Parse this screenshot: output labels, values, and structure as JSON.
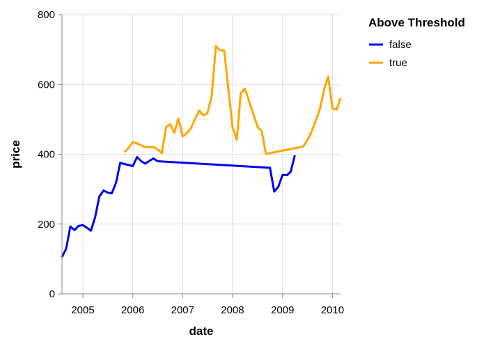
{
  "chart_data": {
    "type": "line",
    "xlabel": "date",
    "ylabel": "price",
    "x_ticks": [
      "2005",
      "2006",
      "2007",
      "2008",
      "2009",
      "2010"
    ],
    "y_ticks": [
      "0",
      "200",
      "400",
      "600",
      "800"
    ],
    "xlim": [
      "2004-08-01",
      "2010-03-01"
    ],
    "ylim": [
      0,
      800
    ],
    "grid": true,
    "legend": {
      "title": "Above Threshold",
      "placement": "top-right"
    },
    "series": [
      {
        "name": "false",
        "color": "#0000ee",
        "points": [
          [
            "2004-08-01",
            105
          ],
          [
            "2004-09-01",
            130
          ],
          [
            "2004-10-01",
            193
          ],
          [
            "2004-11-01",
            183
          ],
          [
            "2004-12-01",
            195
          ],
          [
            "2005-01-01",
            197
          ],
          [
            "2005-02-01",
            189
          ],
          [
            "2005-03-01",
            181
          ],
          [
            "2005-04-01",
            220
          ],
          [
            "2005-05-01",
            279
          ],
          [
            "2005-06-01",
            296
          ],
          [
            "2005-07-01",
            290
          ],
          [
            "2005-08-01",
            288
          ],
          [
            "2005-09-01",
            319
          ],
          [
            "2005-10-01",
            375
          ],
          [
            "2006-01-01",
            366
          ],
          [
            "2006-02-01",
            392
          ],
          [
            "2006-03-01",
            381
          ],
          [
            "2006-04-01",
            373
          ],
          [
            "2006-06-01",
            388
          ],
          [
            "2006-07-01",
            380
          ],
          [
            "2008-10-01",
            361
          ],
          [
            "2008-11-01",
            293
          ],
          [
            "2008-12-01",
            307
          ],
          [
            "2009-01-01",
            341
          ],
          [
            "2009-02-01",
            340
          ],
          [
            "2009-03-01",
            350
          ],
          [
            "2009-04-01",
            397
          ]
        ]
      },
      {
        "name": "true",
        "color": "#ffa500",
        "points": [
          [
            "2005-11-01",
            406
          ],
          [
            "2005-12-01",
            418
          ],
          [
            "2006-01-01",
            435
          ],
          [
            "2006-02-01",
            431
          ],
          [
            "2006-04-01",
            420
          ],
          [
            "2006-06-01",
            421
          ],
          [
            "2006-07-01",
            414
          ],
          [
            "2006-08-01",
            403
          ],
          [
            "2006-09-01",
            477
          ],
          [
            "2006-10-01",
            486
          ],
          [
            "2006-11-01",
            461
          ],
          [
            "2006-12-01",
            503
          ],
          [
            "2007-01-01",
            451
          ],
          [
            "2007-02-01",
            461
          ],
          [
            "2007-03-01",
            474
          ],
          [
            "2007-04-01",
            500
          ],
          [
            "2007-05-01",
            525
          ],
          [
            "2007-06-01",
            512
          ],
          [
            "2007-07-01",
            517
          ],
          [
            "2007-08-01",
            566
          ],
          [
            "2007-09-01",
            710
          ],
          [
            "2007-10-01",
            698
          ],
          [
            "2007-11-01",
            697
          ],
          [
            "2007-12-01",
            586
          ],
          [
            "2008-01-01",
            479
          ],
          [
            "2008-02-01",
            441
          ],
          [
            "2008-03-01",
            575
          ],
          [
            "2008-04-01",
            588
          ],
          [
            "2008-07-01",
            479
          ],
          [
            "2008-08-01",
            466
          ],
          [
            "2008-09-01",
            401
          ],
          [
            "2009-06-01",
            422
          ],
          [
            "2009-07-01",
            440
          ],
          [
            "2009-08-01",
            464
          ],
          [
            "2009-10-01",
            529
          ],
          [
            "2009-11-01",
            585
          ],
          [
            "2009-12-01",
            623
          ],
          [
            "2010-01-01",
            531
          ],
          [
            "2010-02-01",
            528
          ],
          [
            "2010-03-01",
            561
          ]
        ]
      }
    ]
  }
}
